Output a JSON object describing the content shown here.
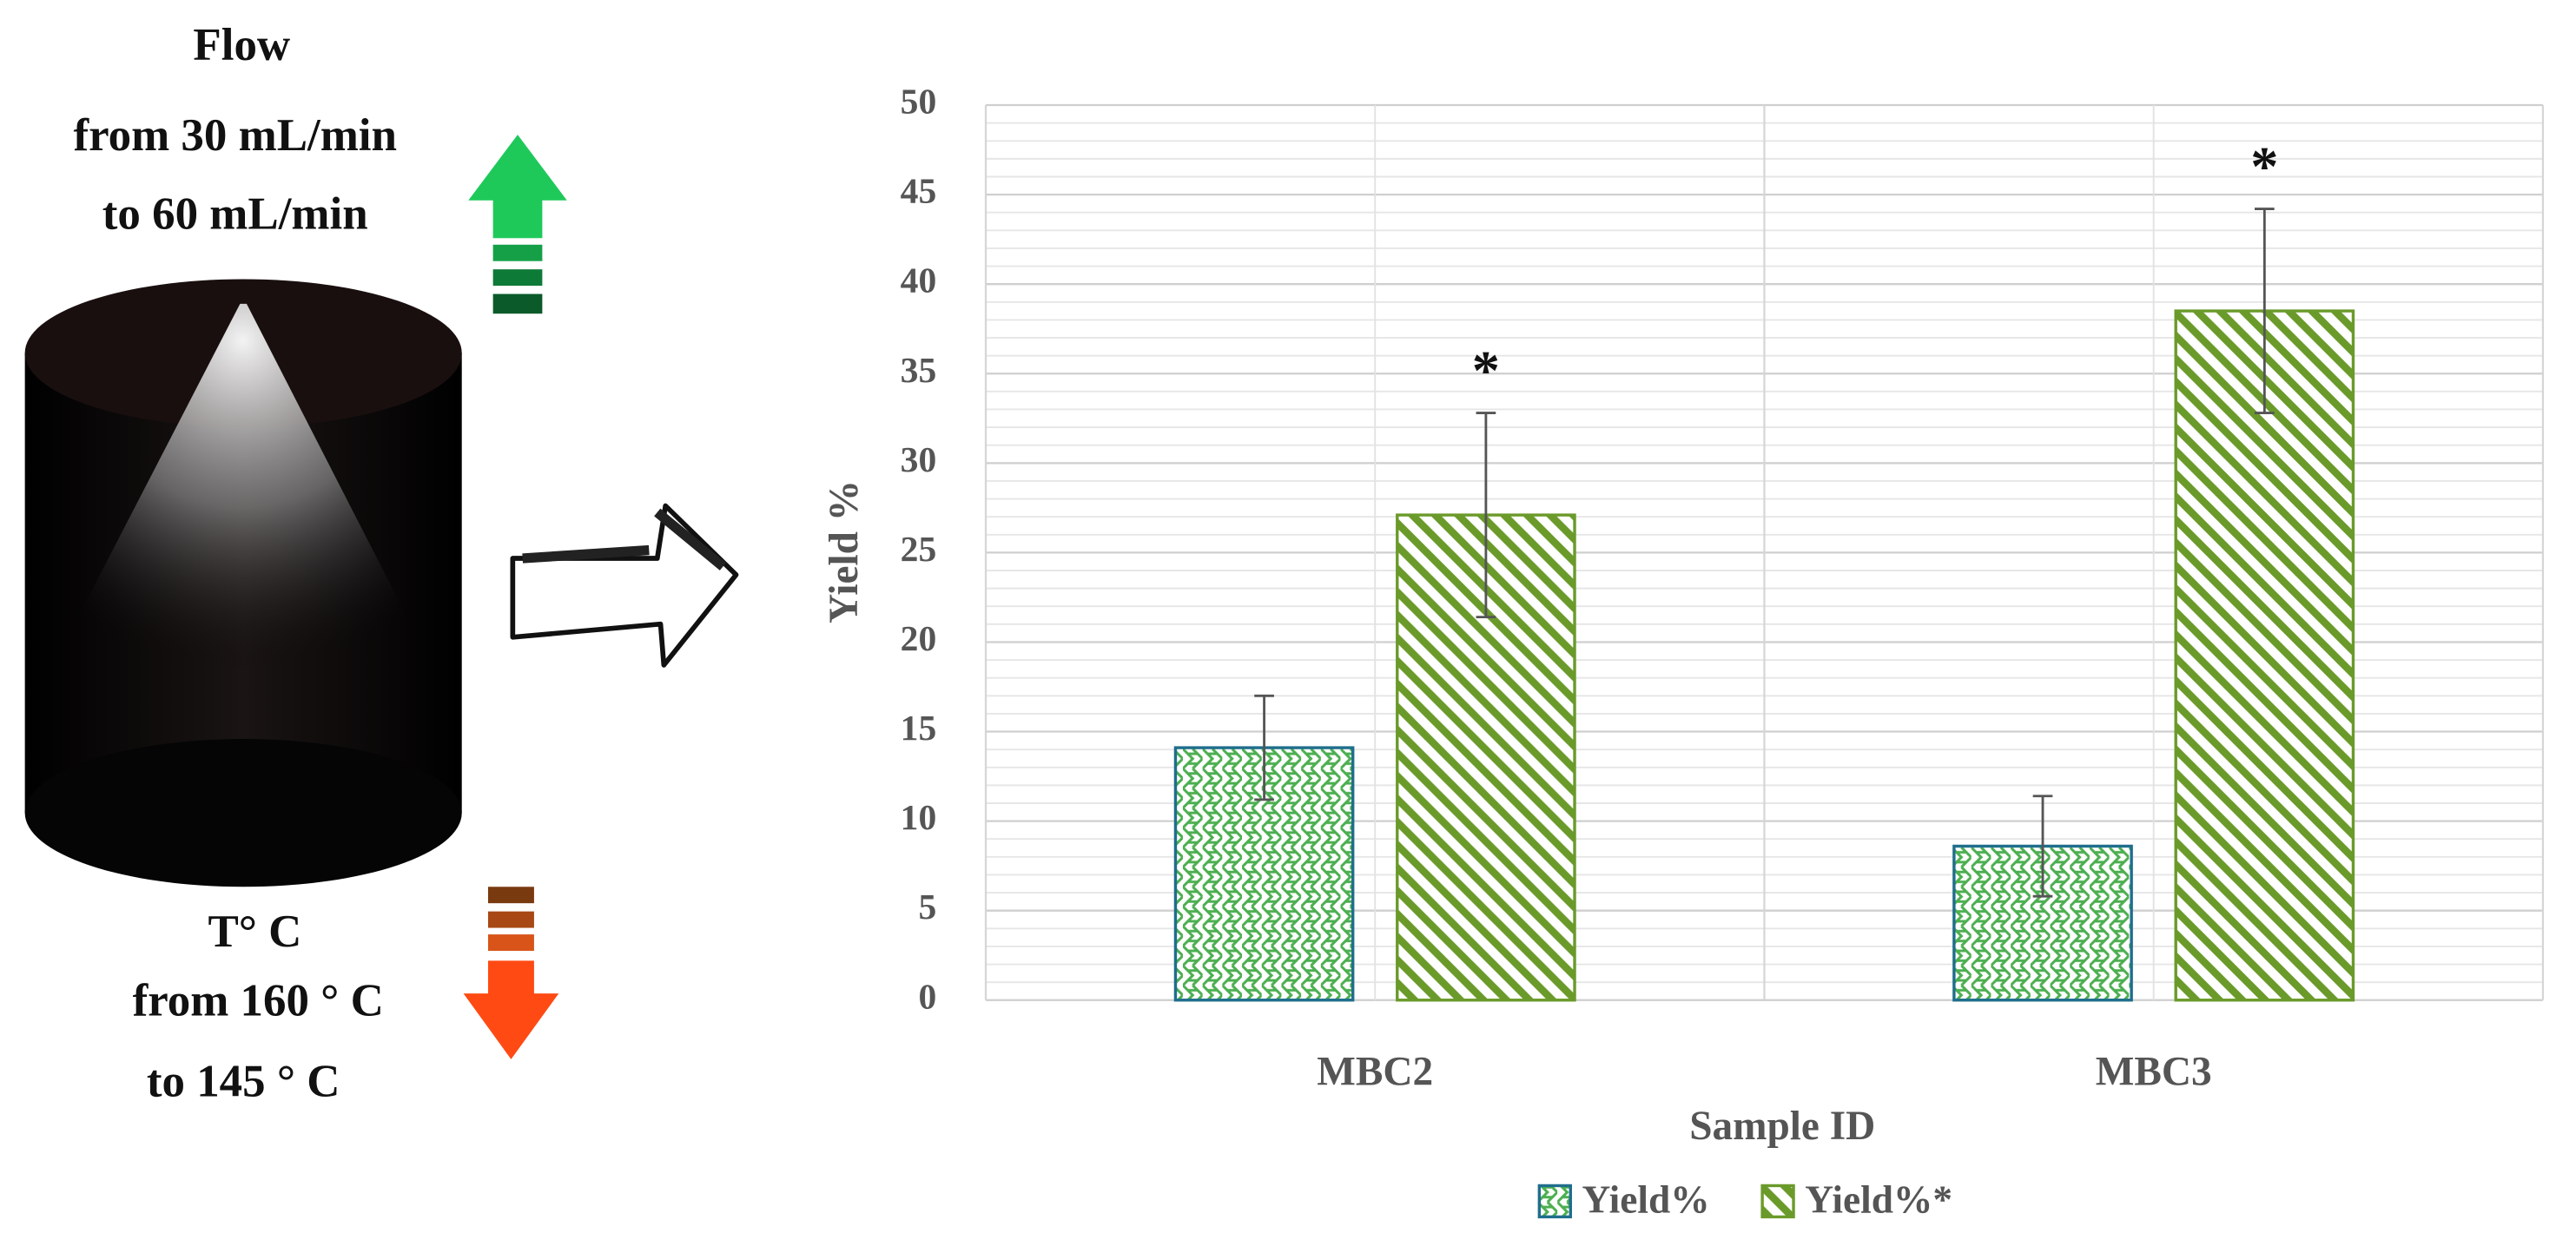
{
  "diagram": {
    "flow_label": "Flow",
    "flow_from": "from 30 mL/min",
    "flow_to": "to 60 mL/min",
    "temperature_label": "T° C",
    "temperature_from": "from 160 ° C",
    "temperature_to": "to 145 ° C"
  },
  "chart_data": {
    "type": "bar",
    "x_label": "Sample ID",
    "y_label": "Yield %",
    "categories": [
      "MBC2",
      "MBC3"
    ],
    "series": [
      {
        "name": "Yield%",
        "color": "#4caf50",
        "border": "#1f6e8c",
        "pattern": "weave",
        "values": [
          14.1,
          8.6
        ],
        "errors": [
          2.9,
          2.8
        ]
      },
      {
        "name": "Yield%*",
        "color": "#6a9a2a",
        "border": "#6a9a2a",
        "pattern": "stripes",
        "values": [
          27.1,
          38.5
        ],
        "errors": [
          5.7,
          5.7
        ]
      }
    ],
    "annotations": [
      {
        "text": "*",
        "series": 1,
        "category": 0
      },
      {
        "text": "*",
        "series": 1,
        "category": 1
      }
    ],
    "ylim": [
      0,
      50
    ],
    "yticks": [
      0,
      5,
      10,
      15,
      20,
      25,
      30,
      35,
      40,
      45,
      50
    ],
    "grid": true,
    "minor_grid_step": 1,
    "legend": "bottom"
  }
}
